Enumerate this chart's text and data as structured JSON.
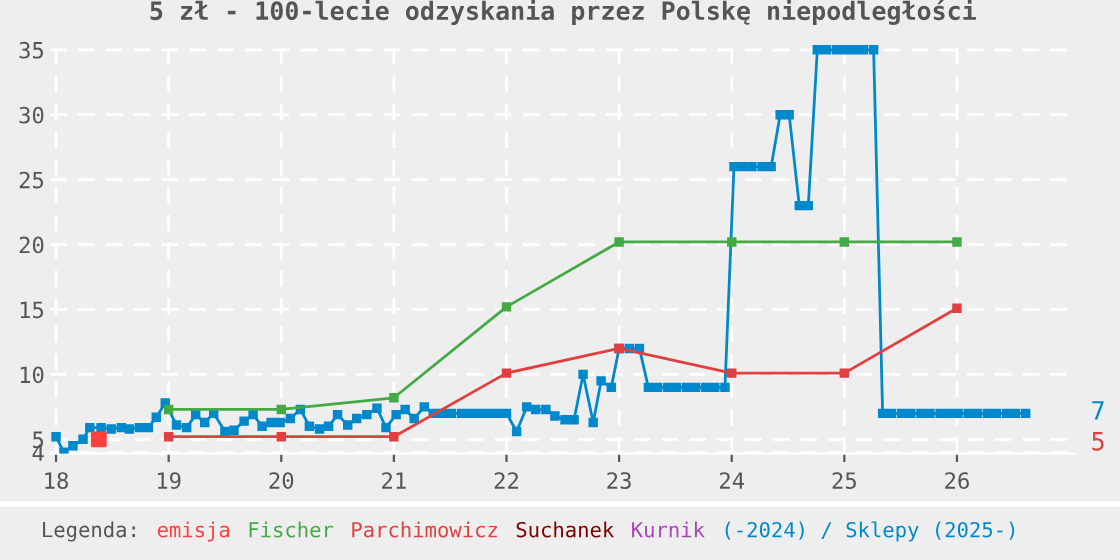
{
  "chart_data": {
    "type": "line",
    "title": "5 zł - 100-lecie odzyskania przez Polskę niepodległości",
    "xlim": [
      17.95,
      27.05
    ],
    "ylim": [
      3.9,
      35.6
    ],
    "xticks": [
      18,
      19,
      20,
      21,
      22,
      23,
      24,
      25,
      26
    ],
    "yticks": [
      {
        "value": 4,
        "label": "4"
      },
      5,
      10,
      15,
      20,
      25,
      30,
      35
    ],
    "grid": true,
    "legend": "bottom",
    "legend_title": "Legenda:",
    "marker": "square",
    "line_style": "solid",
    "annotations": [
      "7",
      "5"
    ],
    "series": [
      {
        "name": "emisja",
        "type": "scatter",
        "color": "#ff4040",
        "x": [
          18.38
        ],
        "values": [
          5
        ]
      },
      {
        "name": "Fischer",
        "color": "#44aa44",
        "x": [
          19,
          20,
          21,
          22,
          23,
          24,
          25,
          26
        ],
        "values": [
          7.3,
          7.3,
          8.2,
          15.2,
          20.2,
          20.2,
          20.2,
          20.2
        ]
      },
      {
        "name": "Parchimowicz",
        "color": "#e04040",
        "x": [
          19,
          20,
          21,
          22,
          23,
          24,
          25,
          26
        ],
        "values": [
          5.2,
          5.2,
          5.2,
          10.1,
          12,
          10.1,
          10.1,
          15.1
        ]
      },
      {
        "name": "Suchanek",
        "color": "#800000"
      },
      {
        "name": "Kurnik",
        "color": "#aa44bb"
      },
      {
        "name": "(-2024) / Sklepy (2025-)",
        "color": "#0088cc",
        "x": [
          18.0,
          18.07,
          18.15,
          18.24,
          18.3,
          18.4,
          18.49,
          18.58,
          18.65,
          18.74,
          18.82,
          18.89,
          18.97,
          19.07,
          19.16,
          19.24,
          19.32,
          19.4,
          19.5,
          19.58,
          19.67,
          19.75,
          19.83,
          19.91,
          19.99,
          20.08,
          20.17,
          20.25,
          20.34,
          20.42,
          20.5,
          20.59,
          20.67,
          20.76,
          20.85,
          20.93,
          21.02,
          21.1,
          21.18,
          21.27,
          21.35,
          21.43,
          21.51,
          21.6,
          21.68,
          21.76,
          21.84,
          21.92,
          22.0,
          22.09,
          22.18,
          22.26,
          22.35,
          22.43,
          22.52,
          22.6,
          22.68,
          22.77,
          22.84,
          22.93,
          23.0,
          23.09,
          23.18,
          23.26,
          23.34,
          23.43,
          23.51,
          23.6,
          23.68,
          23.77,
          23.85,
          23.94,
          24.02,
          24.1,
          24.18,
          24.27,
          24.35,
          24.43,
          24.51,
          24.6,
          24.68,
          24.76,
          24.84,
          24.93,
          25.01,
          25.09,
          25.17,
          25.26,
          25.34,
          25.42,
          25.51,
          25.59,
          25.68,
          25.76,
          25.85,
          25.93,
          26.01,
          26.1,
          26.18,
          26.27,
          26.35,
          26.44,
          26.52,
          26.61
        ],
        "values": [
          5.2,
          4.0,
          4.5,
          5.0,
          5.9,
          5.9,
          5.8,
          5.9,
          5.8,
          5.9,
          5.9,
          6.7,
          7.8,
          6.1,
          5.9,
          6.9,
          6.3,
          7.0,
          5.6,
          5.7,
          6.4,
          6.9,
          6.0,
          6.3,
          6.3,
          6.6,
          7.3,
          6.0,
          5.8,
          6.0,
          6.9,
          6.1,
          6.6,
          6.9,
          7.4,
          5.9,
          6.9,
          7.3,
          6.6,
          7.5,
          7.0,
          7.0,
          7.0,
          7.0,
          7.0,
          7.0,
          7.0,
          7.0,
          7.0,
          5.6,
          7.5,
          7.3,
          7.3,
          6.8,
          6.5,
          6.5,
          10.0,
          6.3,
          9.5,
          9.0,
          12.0,
          12.0,
          12.0,
          9.0,
          9.0,
          9.0,
          9.0,
          9.0,
          9.0,
          9.0,
          9.0,
          9.0,
          26.0,
          26.0,
          26.0,
          26.0,
          26.0,
          30.0,
          30.0,
          23.0,
          23.0,
          35.0,
          35.0,
          35.0,
          35.0,
          35.0,
          35.0,
          35.0,
          7.0,
          7.0,
          7.0,
          7.0,
          7.0,
          7.0,
          7.0,
          7.0,
          7.0,
          7.0,
          7.0,
          7.0,
          7.0,
          7.0,
          7.0,
          7.0
        ]
      }
    ]
  }
}
